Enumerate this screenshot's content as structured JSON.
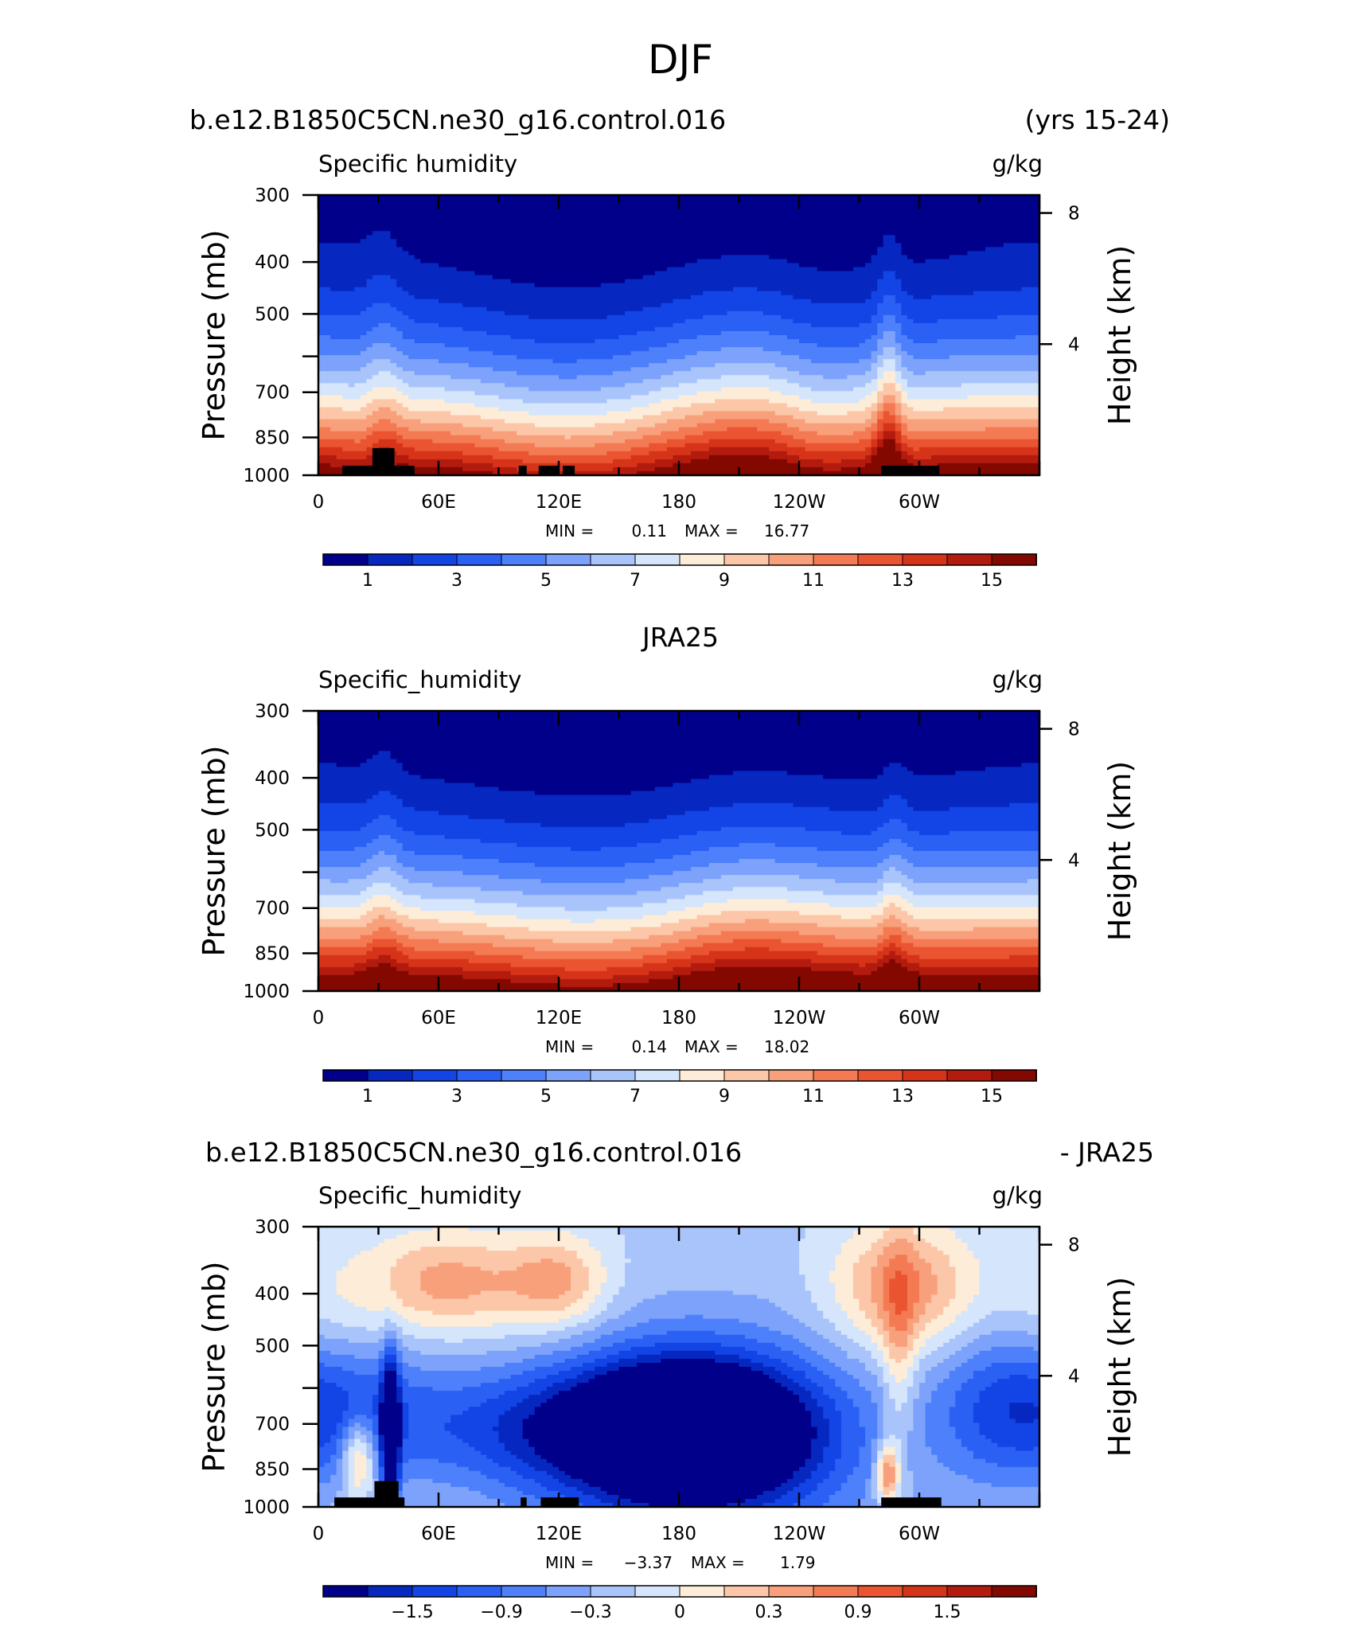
{
  "figure_title": "DJF",
  "panels": [
    {
      "header_left": "b.e12.B1850C5CN.ne30_g16.control.016",
      "header_center": "",
      "header_right": "(yrs 15-24)",
      "variable_label": "Specific humidity",
      "units": "g/kg",
      "min_label": "MIN =",
      "min_value": "0.11",
      "max_label": "MAX =",
      "max_value": "16.77",
      "colorbar_labels": [
        "1",
        "3",
        "5",
        "7",
        "9",
        "11",
        "13",
        "15"
      ]
    },
    {
      "header_left": "",
      "header_center": "JRA25",
      "header_right": "",
      "variable_label": "Specific_humidity",
      "units": "g/kg",
      "min_label": "MIN =",
      "min_value": "0.14",
      "max_label": "MAX =",
      "max_value": "18.02",
      "colorbar_labels": [
        "1",
        "3",
        "5",
        "7",
        "9",
        "11",
        "13",
        "15"
      ]
    },
    {
      "header_left": "b.e12.B1850C5CN.ne30_g16.control.016",
      "header_center": "",
      "header_right": "- JRA25",
      "variable_label": "Specific_humidity",
      "units": "g/kg",
      "min_label": "MIN =",
      "min_value": "−3.37",
      "max_label": "MAX =",
      "max_value": "1.79",
      "colorbar_labels": [
        "−1.5",
        "−0.9",
        "−0.3",
        "0",
        "0.3",
        "0.9",
        "1.5"
      ]
    }
  ],
  "chart_data": {
    "type": "heatmap",
    "title": "DJF",
    "x_tick_labels": [
      "0",
      "60E",
      "120E",
      "180",
      "120W",
      "60W"
    ],
    "y_left_label": "Pressure (mb)",
    "y_left_ticks": [
      300,
      400,
      500,
      600,
      700,
      850,
      1000
    ],
    "y_left_tick_labels": [
      "300",
      "400",
      "500",
      "",
      "700",
      "850",
      "1000"
    ],
    "y_right_label": "Height (km)",
    "y_right_ticks": [
      8,
      4
    ],
    "colormap": [
      "#00008a",
      "#0628c0",
      "#1244e6",
      "#2b60f4",
      "#4d80fa",
      "#7ca2fb",
      "#a9c4fb",
      "#d4e5fc",
      "#fdecd8",
      "#fbc7a8",
      "#f8a07b",
      "#f47a54",
      "#ea5430",
      "#d63419",
      "#b21b0e",
      "#820800"
    ],
    "panels": [
      {
        "name": "b.e12.B1850C5CN.ne30_g16.control.016",
        "vmin_level": 0,
        "vmax_level": 16,
        "min": 0.11,
        "max": 16.77,
        "colorbar_levels": [
          0,
          1,
          2,
          3,
          4,
          5,
          6,
          7,
          8,
          9,
          10,
          11,
          12,
          13,
          14,
          15,
          16
        ]
      },
      {
        "name": "JRA25",
        "vmin_level": 0,
        "vmax_level": 16,
        "min": 0.14,
        "max": 18.02,
        "colorbar_levels": [
          0,
          1,
          2,
          3,
          4,
          5,
          6,
          7,
          8,
          9,
          10,
          11,
          12,
          13,
          14,
          15,
          16
        ]
      },
      {
        "name": "b.e12.B1850C5CN.ne30_g16.control.016 - JRA25",
        "vmin_level": -2.4,
        "vmax_level": 2.4,
        "min": -3.37,
        "max": 1.79,
        "colorbar_levels": [
          -2.1,
          -1.8,
          -1.5,
          -1.2,
          -0.9,
          -0.6,
          -0.3,
          0,
          0.3,
          0.6,
          0.9,
          1.2,
          1.5,
          1.8,
          2.1
        ]
      }
    ]
  }
}
